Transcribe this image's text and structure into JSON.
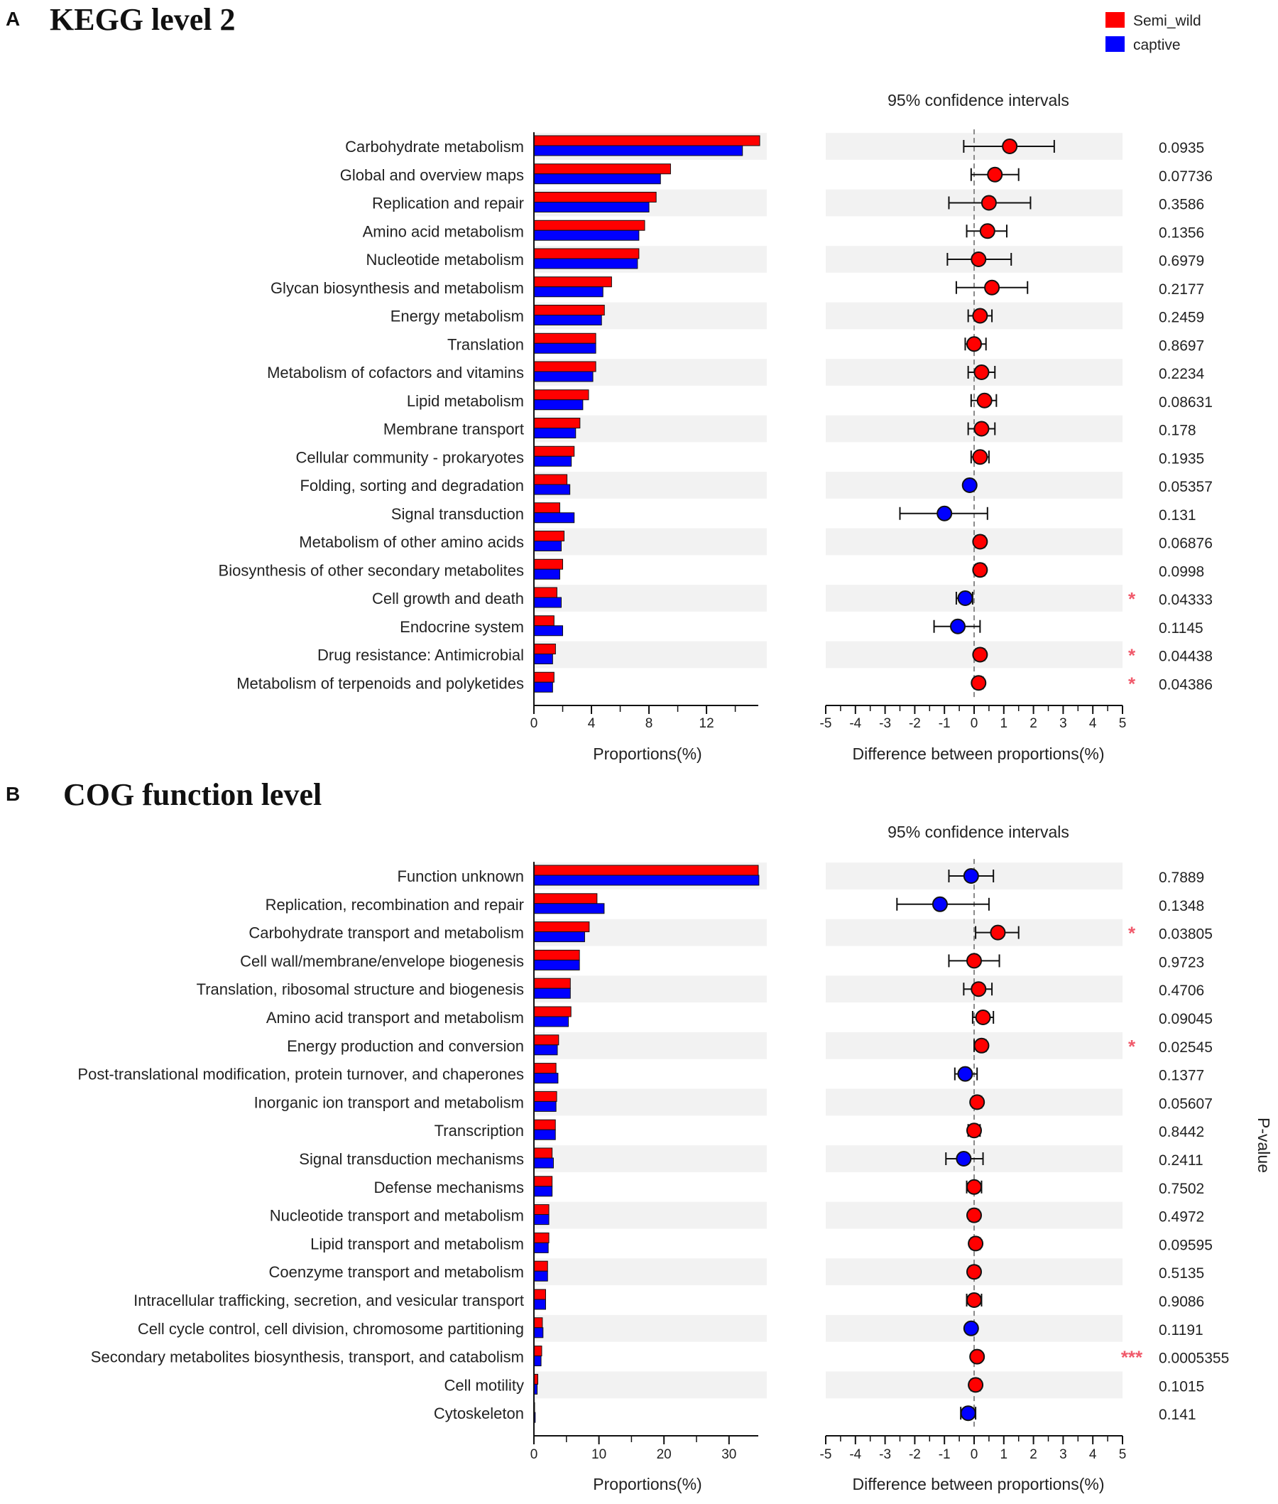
{
  "legend": [
    {
      "name": "Semi_wild",
      "color": "#ff0000"
    },
    {
      "name": "captive",
      "color": "#0000ff"
    }
  ],
  "side_label": "P-value",
  "colors": {
    "semi_wild": "#ff0000",
    "captive": "#0000ff",
    "stripe": "#f2f2f2",
    "star": "#f05a6b",
    "outline": "#111111"
  },
  "chart_data": [
    {
      "type": "bar",
      "panel_letter": "A",
      "title": "KEGG  level 2",
      "ci_title": "95% confidence intervals",
      "xlabel": "Proportions(%)",
      "diff_xlabel": "Difference between proportions(%)",
      "xlim": [
        0,
        15.6
      ],
      "xticks": [
        0,
        4,
        8,
        12
      ],
      "diff_xlim": [
        -5,
        5
      ],
      "diff_xticks": [
        -5,
        -4,
        -3,
        -2,
        -1,
        0,
        1,
        2,
        3,
        4,
        5
      ],
      "categories": [
        "Carbohydrate metabolism",
        "Global and overview maps",
        "Replication and repair",
        "Amino acid metabolism",
        "Nucleotide metabolism",
        "Glycan biosynthesis and metabolism",
        "Energy metabolism",
        "Translation",
        "Metabolism of cofactors and vitamins",
        "Lipid metabolism",
        "Membrane transport",
        "Cellular community - prokaryotes",
        "Folding, sorting and degradation",
        "Signal transduction",
        "Metabolism of other amino acids",
        "Biosynthesis of other secondary metabolites",
        "Cell growth and death",
        "Endocrine system",
        "Drug resistance: Antimicrobial",
        "Metabolism of terpenoids and polyketides"
      ],
      "series": [
        {
          "name": "Semi_wild",
          "values": [
            15.7,
            9.5,
            8.5,
            7.7,
            7.3,
            5.4,
            4.9,
            4.3,
            4.3,
            3.8,
            3.2,
            2.8,
            2.3,
            1.8,
            2.1,
            2.0,
            1.6,
            1.4,
            1.5,
            1.4
          ]
        },
        {
          "name": "captive",
          "values": [
            14.5,
            8.8,
            8.0,
            7.3,
            7.2,
            4.8,
            4.7,
            4.3,
            4.1,
            3.4,
            2.9,
            2.6,
            2.5,
            2.8,
            1.9,
            1.8,
            1.9,
            2.0,
            1.3,
            1.3
          ]
        }
      ],
      "diff": [
        1.2,
        0.7,
        0.5,
        0.45,
        0.15,
        0.6,
        0.2,
        0.0,
        0.25,
        0.35,
        0.25,
        0.2,
        -0.15,
        -1.0,
        0.2,
        0.2,
        -0.3,
        -0.55,
        0.2,
        0.15
      ],
      "ci_low": [
        -0.35,
        -0.1,
        -0.85,
        -0.25,
        -0.9,
        -0.6,
        -0.2,
        -0.3,
        -0.2,
        -0.1,
        -0.2,
        -0.1,
        -0.15,
        -2.5,
        0.05,
        0.05,
        -0.6,
        -1.35,
        0.05,
        0.0
      ],
      "ci_high": [
        2.7,
        1.5,
        1.9,
        1.1,
        1.25,
        1.8,
        0.6,
        0.4,
        0.7,
        0.75,
        0.7,
        0.5,
        -0.15,
        0.45,
        0.35,
        0.35,
        -0.05,
        0.2,
        0.35,
        0.3
      ],
      "pvalues": [
        "0.0935",
        "0.07736",
        "0.3586",
        "0.1356",
        "0.6979",
        "0.2177",
        "0.2459",
        "0.8697",
        "0.2234",
        "0.08631",
        "0.178",
        "0.1935",
        "0.05357",
        "0.131",
        "0.06876",
        "0.0998",
        "0.04333",
        "0.1145",
        "0.04438",
        "0.04386"
      ],
      "stars": [
        "",
        "",
        "",
        "",
        "",
        "",
        "",
        "",
        "",
        "",
        "",
        "",
        "",
        "",
        "",
        "",
        "*",
        "",
        "*",
        "*"
      ]
    },
    {
      "type": "bar",
      "panel_letter": "B",
      "title": "COG function level",
      "ci_title": "95% confidence intervals",
      "xlabel": "Proportions(%)",
      "diff_xlabel": "Difference between proportions(%)",
      "xlim": [
        0,
        34.5
      ],
      "xticks": [
        0,
        10,
        20,
        30
      ],
      "diff_xlim": [
        -5,
        5
      ],
      "diff_xticks": [
        -5,
        -4,
        -3,
        -2,
        -1,
        0,
        1,
        2,
        3,
        4,
        5
      ],
      "categories": [
        "Function unknown",
        "Replication, recombination and repair",
        "Carbohydrate transport and metabolism",
        "Cell wall/membrane/envelope biogenesis",
        "Translation, ribosomal structure and biogenesis",
        "Amino acid transport and metabolism",
        "Energy production and conversion",
        "Post-translational modification, protein turnover, and chaperones",
        "Inorganic ion transport and metabolism",
        "Transcription",
        "Signal transduction mechanisms",
        "Defense mechanisms",
        "Nucleotide transport and metabolism",
        "Lipid transport and metabolism",
        "Coenzyme transport and metabolism",
        "Intracellular trafficking, secretion, and vesicular transport",
        "Cell cycle control, cell division, chromosome partitioning",
        "Secondary metabolites biosynthesis, transport, and catabolism",
        "Cell motility",
        "Cytoskeleton"
      ],
      "series": [
        {
          "name": "Semi_wild",
          "values": [
            34.5,
            9.7,
            8.5,
            7.0,
            5.6,
            5.7,
            3.8,
            3.4,
            3.5,
            3.3,
            2.8,
            2.8,
            2.3,
            2.3,
            2.1,
            1.8,
            1.3,
            1.2,
            0.6,
            0.1
          ]
        },
        {
          "name": "captive",
          "values": [
            34.6,
            10.8,
            7.8,
            7.0,
            5.6,
            5.3,
            3.6,
            3.7,
            3.4,
            3.3,
            3.0,
            2.8,
            2.3,
            2.2,
            2.1,
            1.8,
            1.4,
            1.1,
            0.5,
            0.2
          ]
        }
      ],
      "diff": [
        -0.1,
        -1.15,
        0.8,
        0.0,
        0.15,
        0.3,
        0.25,
        -0.3,
        0.1,
        0.0,
        -0.35,
        0.0,
        0.0,
        0.05,
        0.0,
        0.0,
        -0.1,
        0.1,
        0.05,
        -0.2
      ],
      "ci_low": [
        -0.85,
        -2.6,
        0.05,
        -0.85,
        -0.35,
        -0.05,
        0.0,
        -0.65,
        -0.05,
        -0.2,
        -0.95,
        -0.25,
        -0.15,
        -0.1,
        -0.15,
        -0.25,
        -0.2,
        0.0,
        -0.1,
        -0.45
      ],
      "ci_high": [
        0.65,
        0.5,
        1.5,
        0.85,
        0.6,
        0.65,
        0.4,
        0.1,
        0.25,
        0.2,
        0.3,
        0.25,
        0.15,
        0.2,
        0.15,
        0.25,
        0.0,
        0.2,
        0.2,
        0.05
      ],
      "pvalues": [
        "0.7889",
        "0.1348",
        "0.03805",
        "0.9723",
        "0.4706",
        "0.09045",
        "0.02545",
        "0.1377",
        "0.05607",
        "0.8442",
        "0.2411",
        "0.7502",
        "0.4972",
        "0.09595",
        "0.5135",
        "0.9086",
        "0.1191",
        "0.0005355",
        "0.1015",
        "0.141"
      ],
      "stars": [
        "",
        "",
        "*",
        "",
        "",
        "",
        "*",
        "",
        "",
        "",
        "",
        "",
        "",
        "",
        "",
        "",
        "",
        "***",
        "",
        ""
      ]
    }
  ]
}
